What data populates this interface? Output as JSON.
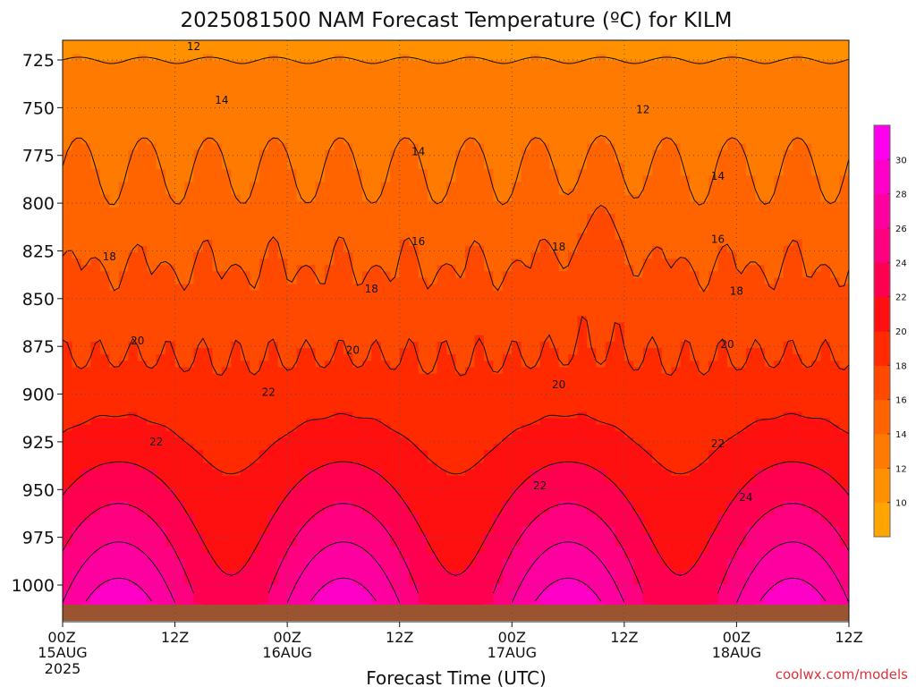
{
  "title": "2025081500 NAM Forecast Temperature (ºC) for KILM",
  "xlabel": "Forecast Time (UTC)",
  "credit": "coolwx.com/models",
  "colors": {
    "ground": "#9a5530",
    "contour_line": "#111111",
    "grid": "#555555"
  },
  "chart_data": {
    "type": "heatmap",
    "title": "2025081500 NAM Forecast Temperature (ºC) for KILM",
    "xlabel": "Forecast Time (UTC)",
    "ylabel": "",
    "x_hours_range": [
      0,
      84
    ],
    "y_pressure_range": [
      1013,
      712
    ],
    "x_ticks": [
      {
        "h": 0,
        "label": "00Z",
        "sub": "15AUG",
        "sub2": "2025"
      },
      {
        "h": 12,
        "label": "12Z",
        "sub": "",
        "sub2": ""
      },
      {
        "h": 24,
        "label": "00Z",
        "sub": "16AUG",
        "sub2": ""
      },
      {
        "h": 36,
        "label": "12Z",
        "sub": "",
        "sub2": ""
      },
      {
        "h": 48,
        "label": "00Z",
        "sub": "17AUG",
        "sub2": ""
      },
      {
        "h": 60,
        "label": "12Z",
        "sub": "",
        "sub2": ""
      },
      {
        "h": 72,
        "label": "00Z",
        "sub": "18AUG",
        "sub2": ""
      },
      {
        "h": 84,
        "label": "12Z",
        "sub": "",
        "sub2": ""
      }
    ],
    "y_ticks": [
      725,
      750,
      775,
      800,
      825,
      850,
      875,
      900,
      925,
      950,
      975,
      1000
    ],
    "colorbar": {
      "levels": [
        8,
        10,
        12,
        14,
        16,
        18,
        20,
        22,
        24,
        26,
        28,
        30,
        32
      ],
      "labels": [
        10,
        12,
        14,
        16,
        18,
        20,
        22,
        24,
        26,
        28,
        30
      ],
      "colors": [
        "#ffa500",
        "#ff9000",
        "#ff7a00",
        "#ff6400",
        "#ff4800",
        "#ff2a00",
        "#ff1010",
        "#ff0050",
        "#ff0080",
        "#ff00a0",
        "#ff00c8",
        "#ff00ee"
      ]
    },
    "contour_labels": [
      {
        "h": 14.0,
        "p": 718,
        "v": "12"
      },
      {
        "h": 62.0,
        "p": 751,
        "v": "12"
      },
      {
        "h": 17.0,
        "p": 746,
        "v": "14"
      },
      {
        "h": 38.0,
        "p": 773,
        "v": "14"
      },
      {
        "h": 70.0,
        "p": 786,
        "v": "14"
      },
      {
        "h": 38.0,
        "p": 820,
        "v": "16"
      },
      {
        "h": 70.0,
        "p": 819,
        "v": "16"
      },
      {
        "h": 5.0,
        "p": 828,
        "v": "18"
      },
      {
        "h": 33.0,
        "p": 845,
        "v": "18"
      },
      {
        "h": 53.0,
        "p": 823,
        "v": "18"
      },
      {
        "h": 72.0,
        "p": 846,
        "v": "18"
      },
      {
        "h": 8.0,
        "p": 872,
        "v": "20"
      },
      {
        "h": 31.0,
        "p": 877,
        "v": "20"
      },
      {
        "h": 53.0,
        "p": 895,
        "v": "20"
      },
      {
        "h": 71.0,
        "p": 874,
        "v": "20"
      },
      {
        "h": 22.0,
        "p": 899,
        "v": "22"
      },
      {
        "h": 10.0,
        "p": 925,
        "v": "22"
      },
      {
        "h": 51.0,
        "p": 948,
        "v": "22"
      },
      {
        "h": 70.0,
        "p": 926,
        "v": "22"
      },
      {
        "h": 73.0,
        "p": 954,
        "v": "24"
      }
    ]
  }
}
